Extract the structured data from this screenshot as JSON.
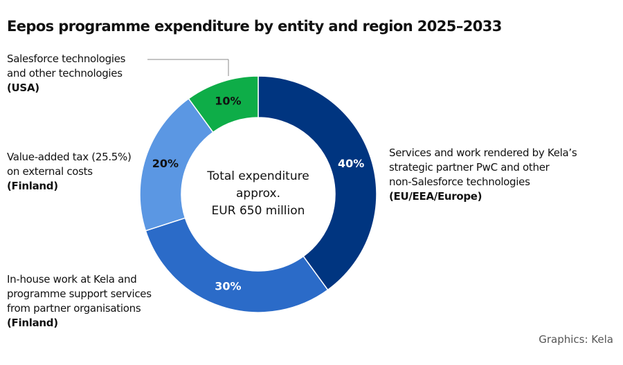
{
  "chart_data": {
    "type": "pie",
    "title": "Eepos programme expenditure by entity and region 2025–2033",
    "center_text": [
      "Total expenditure",
      "approx.",
      "EUR 650 million"
    ],
    "slices": [
      {
        "value": 40,
        "label": "40%",
        "text": [
          "Services and work rendered by Kela’s",
          "strategic partner PwC and other",
          "non-Salesforce technologies"
        ],
        "region": "(EU/EEA/Europe)",
        "color": "#003580",
        "label_color": "#ffffff"
      },
      {
        "value": 30,
        "label": "30%",
        "text": [
          "In-house work at Kela and",
          "programme support services",
          "from partner organisations"
        ],
        "region": "(Finland)",
        "color": "#2b6bc8",
        "label_color": "#ffffff"
      },
      {
        "value": 20,
        "label": "20%",
        "text": [
          "Value-added tax (25.5%)",
          "on external costs"
        ],
        "region": "(Finland)",
        "color": "#5b97e3",
        "label_color": "#111111"
      },
      {
        "value": 10,
        "label": "10%",
        "text": [
          "Salesforce technologies",
          "and other technologies"
        ],
        "region": "(USA)",
        "color": "#0ead48",
        "label_color": "#111111"
      }
    ],
    "source": "Graphics: Kela"
  }
}
